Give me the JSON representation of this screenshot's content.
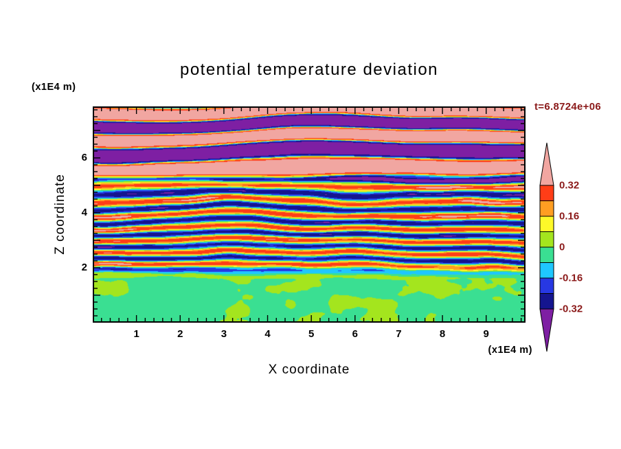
{
  "title": "potential temperature deviation",
  "time_label": "t=6.8724e+06",
  "axes": {
    "x": {
      "label": "X coordinate",
      "unit": "(x1E4 m)",
      "tick_values": [
        1,
        2,
        3,
        4,
        5,
        6,
        7,
        8,
        9
      ],
      "tick_labels": [
        "1",
        "2",
        "3",
        "4",
        "5",
        "6",
        "7",
        "8",
        "9"
      ]
    },
    "z": {
      "label": "Z coordinate",
      "unit": "(x1E4 m)",
      "tick_values": [
        2,
        4,
        6
      ],
      "tick_labels": [
        "2",
        "4",
        "6"
      ]
    }
  },
  "colorbar": {
    "tick_labels": [
      "0.32",
      "0.16",
      "0",
      "-0.16",
      "-0.32"
    ],
    "label_color": "#8B1A1A"
  },
  "chart_data": {
    "type": "heatmap",
    "subtype": "filled_contour",
    "title": "potential temperature deviation",
    "xlabel": "X coordinate",
    "ylabel": "Z coordinate",
    "x_unit": "(x1E4 m)",
    "z_unit": "(x1E4 m)",
    "x_range": [
      0,
      9.9
    ],
    "z_range": [
      0,
      7.875
    ],
    "x_major_ticks": [
      1,
      2,
      3,
      4,
      5,
      6,
      7,
      8,
      9
    ],
    "z_major_ticks": [
      2,
      4,
      6
    ],
    "time_annotation": "t=6.8724e+06",
    "contour_interval": 0.08,
    "contour_levels": [
      -0.32,
      -0.24,
      -0.16,
      -0.08,
      0,
      0.08,
      0.16,
      0.24,
      0.32
    ],
    "level_colors": [
      "#7E1FA3",
      "#15158F",
      "#2738E3",
      "#1FC7FF",
      "#3ADF92",
      "#A4E51E",
      "#FEF929",
      "#FF9E22",
      "#FF3D17",
      "#F1A6A1"
    ],
    "colorbar_labeled_levels": [
      0.32,
      0.16,
      0,
      -0.16,
      -0.32
    ],
    "legend_position": "right",
    "grid": false,
    "field_description": "Horizontally banded stratified wave/turbulence field: near-zero values (spring green with yellow-green blobs, about -0.08 to +0.08) below z of roughly 2; fine alternating positive striations (yellow, orange, red) and negative striations (cyan, blue, navy) for z between roughly 2 and 5; thick alternating bands exceeding +0.32 (salmon pink) and below -0.32 (purple) with thin rainbow fringes above z of roughly 5."
  }
}
